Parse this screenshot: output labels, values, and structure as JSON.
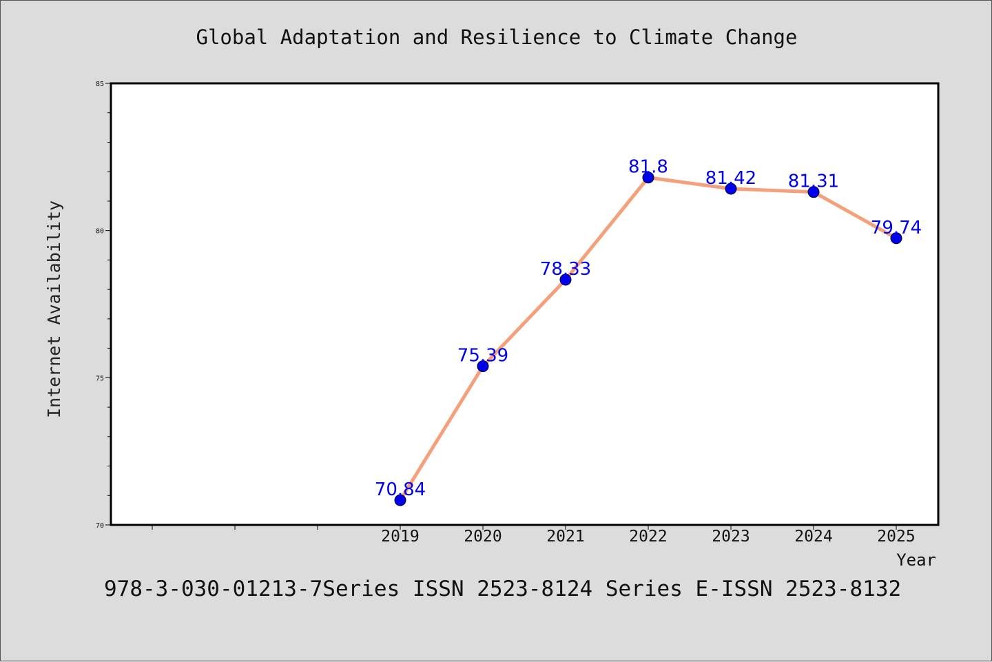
{
  "chart_data": {
    "type": "line",
    "title": "Global Adaptation and Resilience to Climate Change",
    "xlabel": "Year",
    "ylabel": "Internet Availability",
    "x": [
      "2019",
      "2020",
      "2021",
      "2022",
      "2023",
      "2024",
      "2025"
    ],
    "series": [
      {
        "values": [
          70.84,
          75.39,
          78.33,
          81.8,
          81.42,
          81.31,
          79.74
        ],
        "data_labels": [
          "70.84",
          "75.39",
          "78.33",
          "81.8",
          "81.42",
          "81.31",
          "79.74"
        ],
        "line_color": "#f5a07a",
        "marker_color": "#0000ee"
      }
    ],
    "ylim": [
      70,
      85
    ],
    "yticks": [
      "70",
      "75",
      "80",
      "85"
    ],
    "grid": false,
    "legend": "none"
  },
  "footer": "978-3-030-01213-7Series ISSN 2523-8124 Series E-ISSN 2523-8132"
}
